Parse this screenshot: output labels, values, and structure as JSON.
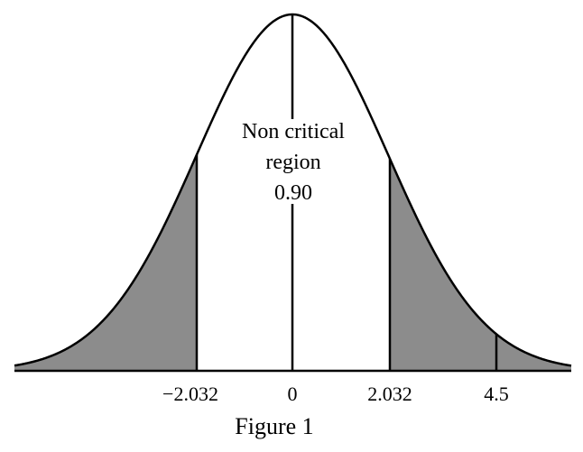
{
  "figure": {
    "caption": "Figure 1",
    "region_label": {
      "line1": "Non critical",
      "line2": "region",
      "value": "0.90"
    },
    "tick_labels": {
      "left_critical": "−2.032",
      "center": "0",
      "right_critical": "2.032",
      "test_statistic": "4.5"
    },
    "colors": {
      "shaded_tail": "#8c8c8c",
      "curve": "#000000",
      "background": "#ffffff"
    }
  }
}
